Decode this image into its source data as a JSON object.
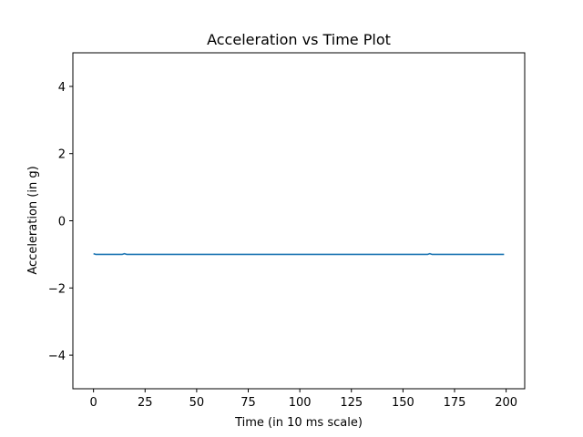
{
  "chart_data": {
    "type": "line",
    "title": "Acceleration vs Time Plot",
    "xlabel": "Time (in 10 ms scale)",
    "ylabel": "Acceleration (in g)",
    "xlim": [
      -10,
      209
    ],
    "ylim": [
      -5,
      5
    ],
    "xticks": [
      0,
      25,
      50,
      75,
      100,
      125,
      150,
      175,
      200
    ],
    "yticks": [
      4,
      2,
      0,
      -2,
      -4
    ],
    "ytick_labels": [
      "4",
      "2",
      "0",
      "−2",
      "−4"
    ],
    "grid": false,
    "line_color": "#1f77b4",
    "series": [
      {
        "x": [
          0,
          1,
          2,
          5,
          10,
          14,
          15,
          16,
          20,
          50,
          100,
          150,
          162,
          163,
          164,
          170,
          190,
          199
        ],
        "y": [
          -0.98,
          -1.0,
          -1.0,
          -1.0,
          -1.0,
          -1.0,
          -0.98,
          -1.0,
          -1.0,
          -1.0,
          -1.0,
          -1.0,
          -1.0,
          -0.98,
          -1.0,
          -1.0,
          -1.0,
          -1.0
        ]
      }
    ]
  }
}
